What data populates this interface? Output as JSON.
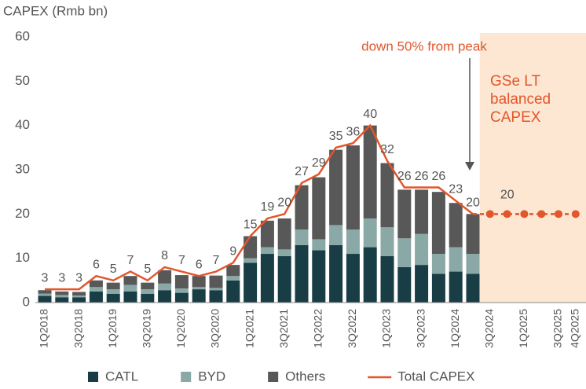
{
  "chart_data": {
    "type": "stacked_bar_line",
    "y_axis_title": "CAPEX (Rmb bn)",
    "categories": [
      "1Q2018",
      null,
      "3Q2018",
      null,
      "1Q2019",
      null,
      "3Q2019",
      null,
      "1Q2020",
      null,
      "3Q2020",
      null,
      "1Q2021",
      null,
      "3Q2021",
      null,
      "1Q2022",
      null,
      "3Q2022",
      null,
      "1Q2023",
      null,
      "3Q2023",
      null,
      "1Q2024",
      null,
      "3Q2024",
      null,
      "1Q2025",
      null,
      "3Q2025",
      "4Q2025"
    ],
    "ylim": [
      0,
      60
    ],
    "yticks": [
      0,
      10,
      20,
      30,
      40,
      50,
      60
    ],
    "series": [
      {
        "name": "CATL",
        "color": "#183d45",
        "kind": "bar",
        "values": [
          1.5,
          1.2,
          1.2,
          2.5,
          2.0,
          2.5,
          2.0,
          2.8,
          2.2,
          3.0,
          2.8,
          5.0,
          9.0,
          11.0,
          10.5,
          13.0,
          11.8,
          13.0,
          11.0,
          12.5,
          10.5,
          8.0,
          8.5,
          6.5,
          7.0,
          6.5,
          null,
          null,
          null,
          null,
          null,
          null
        ]
      },
      {
        "name": "BYD",
        "color": "#8aa8a6",
        "kind": "bar",
        "values": [
          0.5,
          0.5,
          0.4,
          1.0,
          1.0,
          1.5,
          1.0,
          1.5,
          1.0,
          0.5,
          0.5,
          1.0,
          1.0,
          1.5,
          1.5,
          3.5,
          2.5,
          4.5,
          5.5,
          6.5,
          6.5,
          6.5,
          7.0,
          4.5,
          5.5,
          4.5,
          null,
          null,
          null,
          null,
          null,
          null
        ]
      },
      {
        "name": "Others",
        "color": "#585858",
        "kind": "bar",
        "values": [
          0.8,
          0.8,
          0.8,
          1.5,
          1.5,
          2.0,
          1.5,
          3.0,
          3.0,
          2.5,
          2.8,
          2.5,
          5.0,
          6.0,
          7.0,
          10.0,
          14.0,
          17.0,
          19.0,
          21.0,
          14.5,
          11.0,
          10.0,
          14.0,
          10.0,
          9.0,
          null,
          null,
          null,
          null,
          null,
          null
        ]
      },
      {
        "name": "Total CAPEX",
        "color": "#e2562b",
        "kind": "line",
        "values": [
          3,
          3,
          3,
          6,
          5,
          7,
          5,
          8,
          7,
          6,
          7,
          9,
          15,
          19,
          20,
          27,
          29,
          35,
          36,
          40,
          32,
          26,
          26,
          26,
          23,
          20,
          null,
          null,
          null,
          null,
          null,
          null
        ]
      }
    ],
    "forecast": {
      "color": "#e2562b",
      "shade": "#fde6d2",
      "values": [
        null,
        null,
        null,
        null,
        null,
        null,
        null,
        null,
        null,
        null,
        null,
        null,
        null,
        null,
        null,
        null,
        null,
        null,
        null,
        null,
        null,
        null,
        null,
        null,
        null,
        null,
        20,
        20,
        20,
        20,
        20,
        20
      ]
    },
    "annotations": [
      {
        "text": "down 50% from peak",
        "color": "#e2562b"
      },
      {
        "lines": [
          "GSe LT",
          "balanced",
          "CAPEX"
        ],
        "color": "#e2562b"
      }
    ]
  }
}
